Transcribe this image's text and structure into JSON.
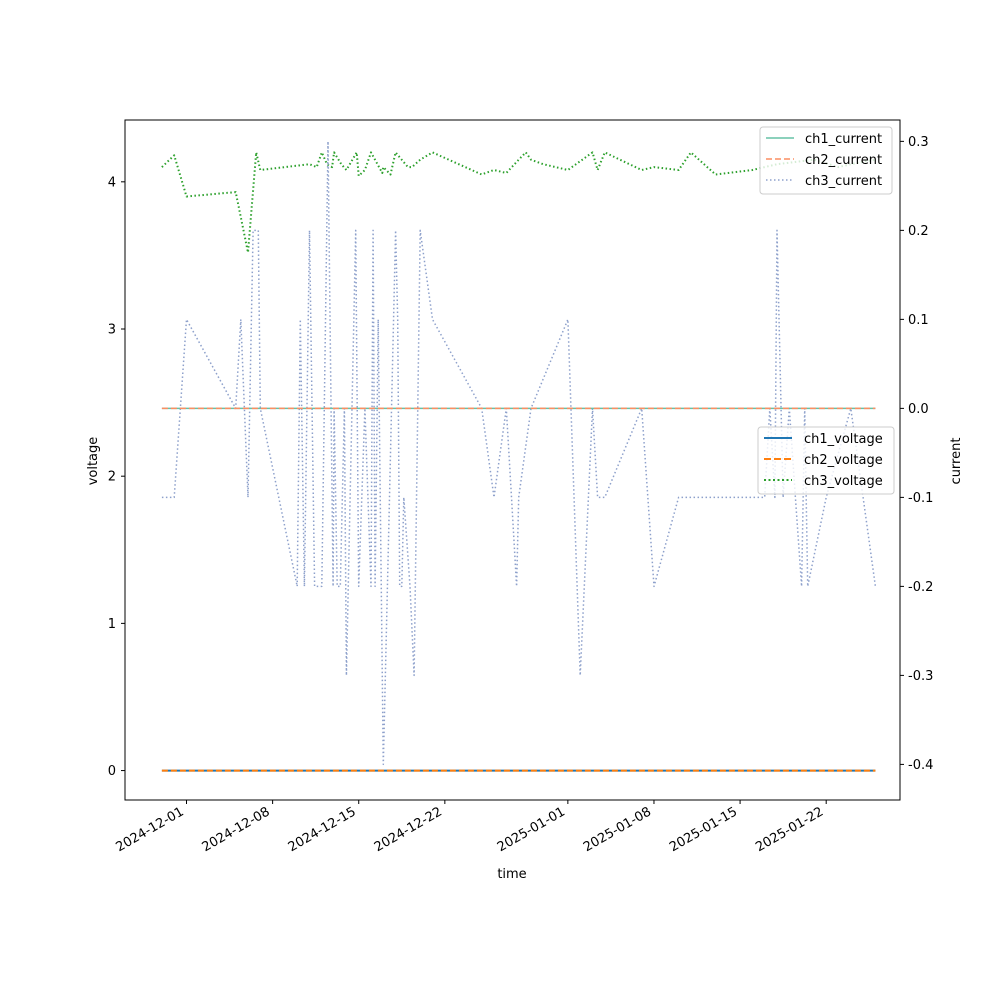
{
  "chart_data": {
    "type": "line",
    "xlabel": "time",
    "ylabel_left": "voltage",
    "ylabel_right": "current",
    "x_range": [
      "2024-11-26",
      "2025-01-28"
    ],
    "x_ticks": [
      "2024-12-01",
      "2024-12-08",
      "2024-12-15",
      "2024-12-22",
      "2025-01-01",
      "2025-01-08",
      "2025-01-15",
      "2025-01-22"
    ],
    "ylim_left": [
      -0.2,
      4.42
    ],
    "ylim_right": [
      -0.44,
      0.324
    ],
    "yticks_left": [
      0,
      1,
      2,
      3,
      4
    ],
    "yticks_right": [
      0.3,
      0.2,
      0.1,
      0.0,
      -0.1,
      -0.2,
      -0.3,
      -0.4
    ],
    "legend_current": {
      "placement": "top-right",
      "entries": [
        "ch1_current",
        "ch2_current",
        "ch3_current"
      ]
    },
    "legend_voltage": {
      "placement": "center-right",
      "entries": [
        "ch1_voltage",
        "ch2_voltage",
        "ch3_voltage"
      ]
    },
    "series": [
      {
        "name": "ch1_voltage",
        "axis": "left",
        "color": "#1f77b4",
        "style": "solid",
        "x": [
          "2024-11-29",
          "2025-01-26"
        ],
        "y": [
          0,
          0
        ]
      },
      {
        "name": "ch2_voltage",
        "axis": "left",
        "color": "#ff7f0e",
        "style": "dashed",
        "x": [
          "2024-11-29",
          "2025-01-26"
        ],
        "y": [
          0,
          0
        ]
      },
      {
        "name": "ch3_voltage",
        "axis": "left",
        "color": "#2ca02c",
        "style": "dotted",
        "x": [
          "2024-11-29",
          "2024-11-30",
          "2024-12-01",
          "2024-12-05",
          "2024-12-06",
          "2024-12-06T16:00",
          "2024-12-07",
          "2024-12-11",
          "2024-12-11T14:00",
          "2024-12-12",
          "2024-12-12T10:00",
          "2024-12-12T20:00",
          "2024-12-13",
          "2024-12-13T14:00",
          "2024-12-14",
          "2024-12-14T20:00",
          "2024-12-15",
          "2024-12-15T12:00",
          "2024-12-16",
          "2024-12-16T22:00",
          "2024-12-17",
          "2024-12-17T14:00",
          "2024-12-18",
          "2024-12-19",
          "2024-12-19T04:00",
          "2024-12-19T08:00",
          "2024-12-20",
          "2024-12-21",
          "2024-12-25",
          "2024-12-26",
          "2024-12-27",
          "2024-12-28",
          "2024-12-28T14:00",
          "2024-12-29",
          "2024-12-30",
          "2025-01-01",
          "2025-01-03",
          "2025-01-03T10:00",
          "2025-01-04",
          "2025-01-06",
          "2025-01-07",
          "2025-01-08",
          "2025-01-10",
          "2025-01-11",
          "2025-01-13",
          "2025-01-16",
          "2025-01-18",
          "2025-01-21",
          "2025-01-23",
          "2025-01-24",
          "2025-01-26"
        ],
        "y": [
          4.1,
          4.18,
          3.9,
          3.93,
          3.52,
          4.2,
          4.08,
          4.12,
          4.1,
          4.2,
          4.12,
          4.1,
          4.2,
          4.12,
          4.08,
          4.2,
          4.04,
          4.08,
          4.2,
          4.06,
          4.1,
          4.05,
          4.2,
          4.1,
          4.1,
          4.1,
          4.15,
          4.2,
          4.05,
          4.08,
          4.06,
          4.15,
          4.2,
          4.15,
          4.12,
          4.08,
          4.2,
          4.08,
          4.2,
          4.12,
          4.08,
          4.1,
          4.08,
          4.2,
          4.05,
          4.08,
          4.12,
          4.15,
          4.1,
          4.12,
          4.15
        ]
      },
      {
        "name": "ch1_current",
        "axis": "right",
        "color": "#66c2a5",
        "style": "solid",
        "x": [
          "2024-11-29",
          "2025-01-26"
        ],
        "y": [
          0,
          0
        ]
      },
      {
        "name": "ch2_current",
        "axis": "right",
        "color": "#fc8d62",
        "style": "dashed",
        "x": [
          "2024-11-29",
          "2025-01-26"
        ],
        "y": [
          0,
          0
        ]
      },
      {
        "name": "ch3_current",
        "axis": "right",
        "color": "#8da0cb",
        "style": "dotted",
        "x": [
          "2024-11-29",
          "2024-11-30",
          "2024-12-01",
          "2024-12-05",
          "2024-12-05T10:00",
          "2024-12-06",
          "2024-12-06T10:00",
          "2024-12-06T20:00",
          "2024-12-07",
          "2024-12-10",
          "2024-12-10T06:00",
          "2024-12-10T14:00",
          "2024-12-11",
          "2024-12-11T10:00",
          "2024-12-12",
          "2024-12-12T12:00",
          "2024-12-12T22:00",
          "2024-12-13",
          "2024-12-13T06:00",
          "2024-12-13T12:00",
          "2024-12-13T20:00",
          "2024-12-14",
          "2024-12-14T18:00",
          "2024-12-15",
          "2024-12-15T12:00",
          "2024-12-16",
          "2024-12-16T04:00",
          "2024-12-16T08:00",
          "2024-12-16T14:00",
          "2024-12-17",
          "2024-12-17T12:00",
          "2024-12-18",
          "2024-12-18T04:00",
          "2024-12-18T08:00",
          "2024-12-18T12:00",
          "2024-12-18T16:00",
          "2024-12-19T04:00",
          "2024-12-19T12:00",
          "2024-12-20",
          "2024-12-21",
          "2024-12-25",
          "2024-12-26",
          "2024-12-27",
          "2024-12-27T10:00",
          "2024-12-27T20:00",
          "2024-12-28",
          "2024-12-29",
          "2025-01-01",
          "2025-01-02",
          "2025-01-03",
          "2025-01-03T10:00",
          "2025-01-04",
          "2025-01-07",
          "2025-01-08",
          "2025-01-10",
          "2025-01-13",
          "2025-01-16",
          "2025-01-17",
          "2025-01-17T10:00",
          "2025-01-17T20:00",
          "2025-01-18",
          "2025-01-18T12:00",
          "2025-01-19",
          "2025-01-19T12:00",
          "2025-01-20",
          "2025-01-20T06:00",
          "2025-01-20T12:00",
          "2025-01-22",
          "2025-01-24",
          "2025-01-26"
        ],
        "y": [
          -0.1,
          -0.1,
          0.1,
          0.0,
          0.1,
          -0.1,
          0.2,
          0.2,
          0.0,
          -0.2,
          0.1,
          -0.2,
          0.2,
          -0.2,
          -0.2,
          0.3,
          -0.2,
          0.0,
          -0.2,
          -0.2,
          0.0,
          -0.3,
          0.2,
          -0.2,
          0.0,
          -0.2,
          0.2,
          -0.2,
          0.1,
          -0.4,
          -0.1,
          0.2,
          0.1,
          -0.2,
          -0.2,
          -0.1,
          -0.2,
          -0.3,
          0.2,
          0.1,
          0.0,
          -0.1,
          0.0,
          -0.1,
          -0.2,
          -0.1,
          0.0,
          0.1,
          -0.3,
          0.0,
          -0.1,
          -0.1,
          0.0,
          -0.2,
          -0.1,
          -0.1,
          -0.1,
          -0.1,
          0.0,
          -0.1,
          0.2,
          -0.1,
          0.0,
          -0.1,
          -0.2,
          0.0,
          -0.2,
          -0.1,
          0.0,
          -0.2
        ]
      }
    ]
  }
}
